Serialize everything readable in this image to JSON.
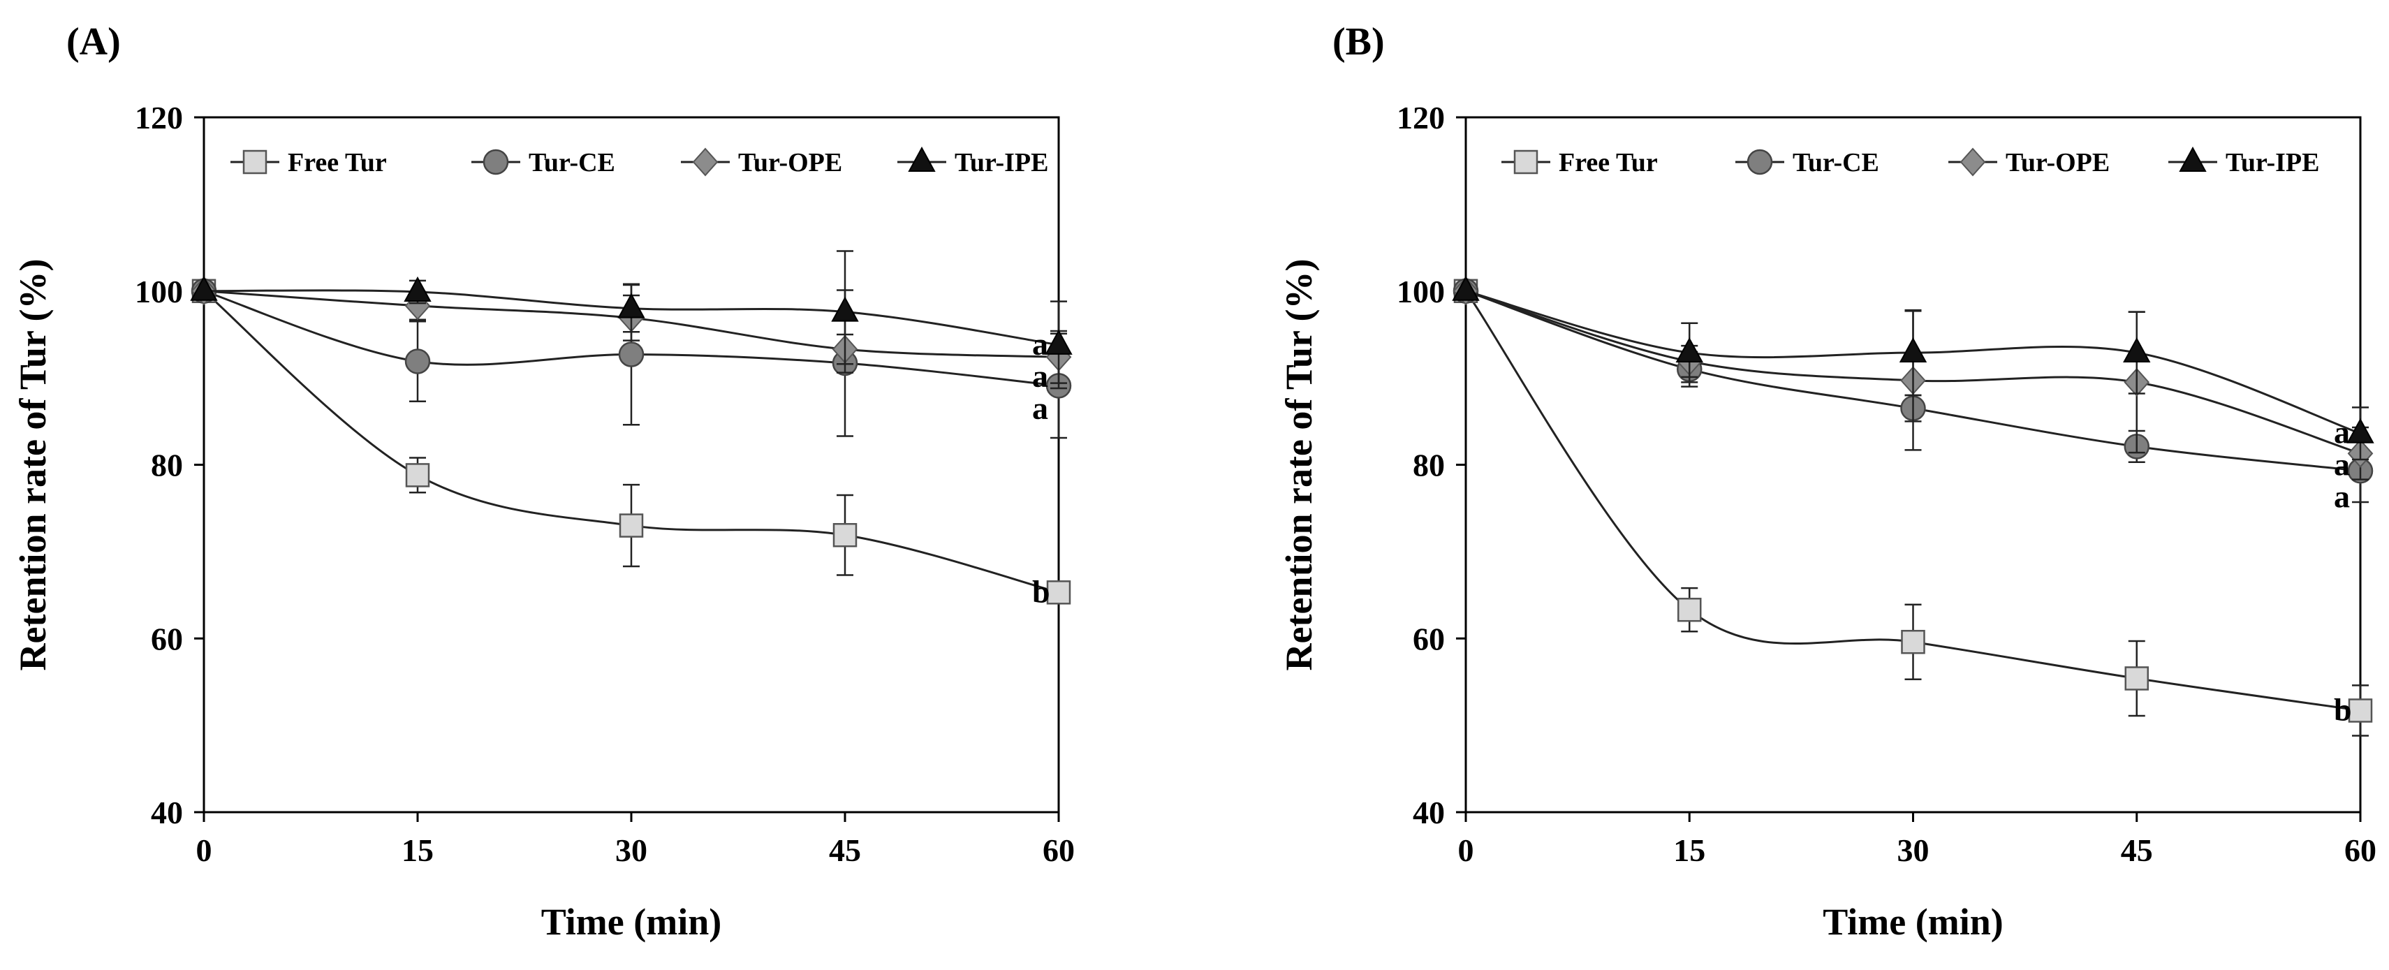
{
  "chart_data": [
    {
      "panel_label": "(A)",
      "type": "line",
      "xlabel": "Time (min)",
      "ylabel": "Retention rate of Tur (%)",
      "x": [
        0,
        15,
        30,
        45,
        60
      ],
      "xticks": [
        "0",
        "15",
        "30",
        "45",
        "60"
      ],
      "xlim": [
        0,
        60
      ],
      "ylim": [
        40,
        120
      ],
      "yticks": [
        "40",
        "60",
        "80",
        "100",
        "120"
      ],
      "grid": false,
      "legend_position": "top",
      "series": [
        {
          "name": "Free Tur",
          "marker": "square",
          "values": [
            100,
            78.8,
            73.0,
            71.9,
            65.3
          ],
          "errors": [
            0,
            2.0,
            4.7,
            4.6,
            0.8
          ],
          "significance": "b"
        },
        {
          "name": "Tur-CE",
          "marker": "circle",
          "values": [
            100,
            91.9,
            92.7,
            91.7,
            89.1
          ],
          "errors": [
            0,
            4.6,
            8.1,
            8.4,
            6.0
          ],
          "significance": "a"
        },
        {
          "name": "Tur-OPE",
          "marker": "diamond",
          "values": [
            100,
            98.3,
            96.9,
            93.3,
            92.4
          ],
          "errors": [
            0,
            1.6,
            2.6,
            1.7,
            3.0
          ],
          "significance": "a"
        },
        {
          "name": "Tur-IPE",
          "marker": "triangle",
          "values": [
            100,
            99.9,
            98.0,
            97.6,
            93.8
          ],
          "errors": [
            0,
            1.3,
            2.7,
            7.0,
            5.0
          ],
          "significance": "a"
        }
      ]
    },
    {
      "panel_label": "(B)",
      "type": "line",
      "xlabel": "Time (min)",
      "ylabel": "Retention rate of Tur (%)",
      "x": [
        0,
        15,
        30,
        45,
        60
      ],
      "xticks": [
        "0",
        "15",
        "30",
        "45",
        "60"
      ],
      "xlim": [
        0,
        60
      ],
      "ylim": [
        40,
        120
      ],
      "yticks": [
        "40",
        "60",
        "80",
        "100",
        "120"
      ],
      "grid": false,
      "legend_position": "top",
      "series": [
        {
          "name": "Free Tur",
          "marker": "square",
          "values": [
            100,
            63.3,
            59.6,
            55.4,
            51.7
          ],
          "errors": [
            0,
            2.5,
            4.3,
            4.3,
            2.9
          ],
          "significance": "b"
        },
        {
          "name": "Tur-CE",
          "marker": "circle",
          "values": [
            100,
            91.0,
            86.5,
            82.1,
            79.3
          ],
          "errors": [
            0,
            2.0,
            1.5,
            1.8,
            3.6
          ],
          "significance": "a"
        },
        {
          "name": "Tur-OPE",
          "marker": "diamond",
          "values": [
            100,
            91.9,
            89.7,
            89.5,
            81.3
          ],
          "errors": [
            0,
            1.8,
            8.0,
            8.1,
            3.0
          ],
          "significance": "a"
        },
        {
          "name": "Tur-IPE",
          "marker": "triangle",
          "values": [
            100,
            92.9,
            92.9,
            92.9,
            83.6
          ],
          "errors": [
            0,
            3.4,
            4.9,
            4.7,
            3.0
          ],
          "significance": "a"
        }
      ]
    }
  ]
}
